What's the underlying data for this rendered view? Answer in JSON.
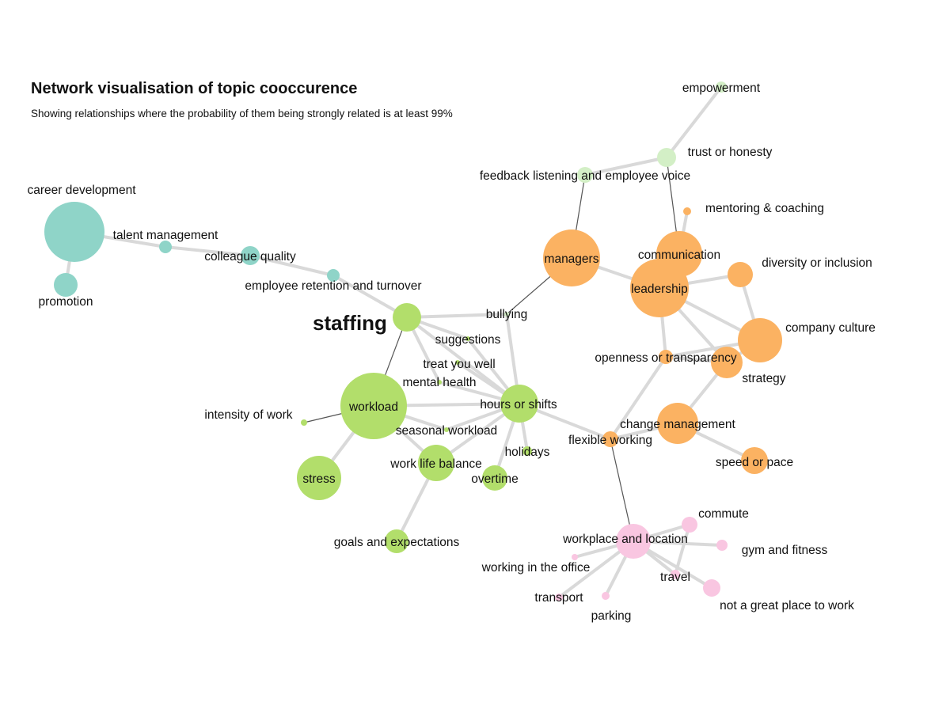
{
  "title": "Network visualisation of topic cooccurence",
  "subtitle": "Showing relationships where the probability of them being strongly related is at least 99%",
  "colors": {
    "teal": "#8fd4c8",
    "green": "#b2de6b",
    "light_green": "#d3efc6",
    "orange": "#fbb262",
    "pink": "#f9c6e1",
    "edge": "#d9d9d9",
    "strong_edge": "#555555"
  },
  "nodes": [
    {
      "id": "career_development",
      "label": "career development",
      "group": "teal",
      "weight": 6
    },
    {
      "id": "talent_management",
      "label": "talent management",
      "group": "teal",
      "weight": 1
    },
    {
      "id": "colleague_quality",
      "label": "colleague quality",
      "group": "teal",
      "weight": 2
    },
    {
      "id": "promotion",
      "label": "promotion",
      "group": "teal",
      "weight": 2
    },
    {
      "id": "employee_retention",
      "label": "employee retention and turnover",
      "group": "teal",
      "weight": 1
    },
    {
      "id": "staffing",
      "label": "staffing",
      "group": "green",
      "weight": 3,
      "emphasis": true
    },
    {
      "id": "suggestions",
      "label": "suggestions",
      "group": "green",
      "weight": 0.4
    },
    {
      "id": "treat_you_well",
      "label": "treat you well",
      "group": "green",
      "weight": 0.4
    },
    {
      "id": "mental_health",
      "label": "mental health",
      "group": "green",
      "weight": 0.4
    },
    {
      "id": "workload",
      "label": "workload",
      "group": "green",
      "weight": 7
    },
    {
      "id": "hours_or_shifts",
      "label": "hours or shifts",
      "group": "green",
      "weight": 3.5
    },
    {
      "id": "intensity_of_work",
      "label": "intensity of work",
      "group": "green",
      "weight": 0.5
    },
    {
      "id": "seasonal_workload",
      "label": "seasonal workload",
      "group": "green",
      "weight": 0.4
    },
    {
      "id": "work_life_balance",
      "label": "work life balance",
      "group": "green",
      "weight": 3
    },
    {
      "id": "holidays",
      "label": "holidays",
      "group": "green",
      "weight": 0.8
    },
    {
      "id": "overtime",
      "label": "overtime",
      "group": "green",
      "weight": 2
    },
    {
      "id": "stress",
      "label": "stress",
      "group": "green",
      "weight": 4
    },
    {
      "id": "goals_and_expectations",
      "label": "goals and expectations",
      "group": "green",
      "weight": 2
    },
    {
      "id": "empowerment",
      "label": "empowerment",
      "group": "light_green",
      "weight": 1
    },
    {
      "id": "trust_or_honesty",
      "label": "trust or honesty",
      "group": "light_green",
      "weight": 2
    },
    {
      "id": "feedback_listening",
      "label": "feedback listening and employee voice",
      "group": "light_green",
      "weight": 1.5
    },
    {
      "id": "bullying",
      "label": "bullying",
      "group": "light_green",
      "weight": 0.4
    },
    {
      "id": "managers",
      "label": "managers",
      "group": "orange",
      "weight": 6
    },
    {
      "id": "communication",
      "label": "communication",
      "group": "orange",
      "weight": 4
    },
    {
      "id": "leadership",
      "label": "leadership",
      "group": "orange",
      "weight": 6
    },
    {
      "id": "mentoring_coaching",
      "label": "mentoring & coaching",
      "group": "orange",
      "weight": 0.6
    },
    {
      "id": "diversity_inclusion",
      "label": "diversity or inclusion",
      "group": "orange",
      "weight": 2
    },
    {
      "id": "company_culture",
      "label": "company culture",
      "group": "orange",
      "weight": 4
    },
    {
      "id": "openness_transparency",
      "label": "openness or transparency",
      "group": "orange",
      "weight": 1
    },
    {
      "id": "strategy",
      "label": "strategy",
      "group": "orange",
      "weight": 2.5
    },
    {
      "id": "change_management",
      "label": "change management",
      "group": "orange",
      "weight": 4
    },
    {
      "id": "speed_or_pace",
      "label": "speed or pace",
      "group": "orange",
      "weight": 2
    },
    {
      "id": "flexible_working",
      "label": "flexible working",
      "group": "orange",
      "weight": 1
    },
    {
      "id": "workplace_and_location",
      "label": "workplace and location",
      "group": "pink",
      "weight": 4
    },
    {
      "id": "commute",
      "label": "commute",
      "group": "pink",
      "weight": 1
    },
    {
      "id": "gym_and_fitness",
      "label": "gym and fitness",
      "group": "pink",
      "weight": 0.7
    },
    {
      "id": "working_in_the_office",
      "label": "working in the office",
      "group": "pink",
      "weight": 0.4
    },
    {
      "id": "travel",
      "label": "travel",
      "group": "pink",
      "weight": 0.6
    },
    {
      "id": "transport",
      "label": "transport",
      "group": "pink",
      "weight": 0.6
    },
    {
      "id": "parking",
      "label": "parking",
      "group": "pink",
      "weight": 0.5
    },
    {
      "id": "not_great_place",
      "label": "not a great place to work",
      "group": "pink",
      "weight": 1.2
    }
  ],
  "edges": [
    {
      "source": "career_development",
      "target": "talent_management"
    },
    {
      "source": "career_development",
      "target": "promotion"
    },
    {
      "source": "talent_management",
      "target": "colleague_quality"
    },
    {
      "source": "colleague_quality",
      "target": "employee_retention"
    },
    {
      "source": "employee_retention",
      "target": "staffing"
    },
    {
      "source": "staffing",
      "target": "workload",
      "strong": true
    },
    {
      "source": "staffing",
      "target": "hours_or_shifts"
    },
    {
      "source": "staffing",
      "target": "suggestions"
    },
    {
      "source": "staffing",
      "target": "bullying"
    },
    {
      "source": "staffing",
      "target": "mental_health"
    },
    {
      "source": "suggestions",
      "target": "hours_or_shifts"
    },
    {
      "source": "treat_you_well",
      "target": "hours_or_shifts"
    },
    {
      "source": "mental_health",
      "target": "hours_or_shifts"
    },
    {
      "source": "workload",
      "target": "hours_or_shifts"
    },
    {
      "source": "workload",
      "target": "intensity_of_work",
      "strong": true
    },
    {
      "source": "workload",
      "target": "stress"
    },
    {
      "source": "workload",
      "target": "work_life_balance"
    },
    {
      "source": "workload",
      "target": "seasonal_workload"
    },
    {
      "source": "seasonal_workload",
      "target": "hours_or_shifts"
    },
    {
      "source": "hours_or_shifts",
      "target": "work_life_balance"
    },
    {
      "source": "hours_or_shifts",
      "target": "holidays"
    },
    {
      "source": "hours_or_shifts",
      "target": "overtime"
    },
    {
      "source": "hours_or_shifts",
      "target": "flexible_working"
    },
    {
      "source": "hours_or_shifts",
      "target": "bullying"
    },
    {
      "source": "work_life_balance",
      "target": "goals_and_expectations"
    },
    {
      "source": "bullying",
      "target": "managers",
      "strong": true
    },
    {
      "source": "managers",
      "target": "feedback_listening",
      "strong": true
    },
    {
      "source": "managers",
      "target": "leadership"
    },
    {
      "source": "feedback_listening",
      "target": "trust_or_honesty"
    },
    {
      "source": "trust_or_honesty",
      "target": "empowerment"
    },
    {
      "source": "trust_or_honesty",
      "target": "communication",
      "strong": true
    },
    {
      "source": "mentoring_coaching",
      "target": "communication"
    },
    {
      "source": "communication",
      "target": "leadership"
    },
    {
      "source": "leadership",
      "target": "diversity_inclusion"
    },
    {
      "source": "leadership",
      "target": "company_culture"
    },
    {
      "source": "leadership",
      "target": "openness_transparency"
    },
    {
      "source": "leadership",
      "target": "strategy"
    },
    {
      "source": "diversity_inclusion",
      "target": "company_culture"
    },
    {
      "source": "company_culture",
      "target": "openness_transparency"
    },
    {
      "source": "company_culture",
      "target": "strategy"
    },
    {
      "source": "openness_transparency",
      "target": "strategy"
    },
    {
      "source": "openness_transparency",
      "target": "flexible_working"
    },
    {
      "source": "strategy",
      "target": "change_management"
    },
    {
      "source": "change_management",
      "target": "flexible_working"
    },
    {
      "source": "change_management",
      "target": "speed_or_pace"
    },
    {
      "source": "flexible_working",
      "target": "workplace_and_location",
      "strong": true
    },
    {
      "source": "workplace_and_location",
      "target": "commute"
    },
    {
      "source": "workplace_and_location",
      "target": "gym_and_fitness"
    },
    {
      "source": "workplace_and_location",
      "target": "working_in_the_office"
    },
    {
      "source": "workplace_and_location",
      "target": "travel"
    },
    {
      "source": "workplace_and_location",
      "target": "transport"
    },
    {
      "source": "workplace_and_location",
      "target": "parking"
    },
    {
      "source": "workplace_and_location",
      "target": "not_great_place"
    },
    {
      "source": "commute",
      "target": "travel"
    }
  ]
}
